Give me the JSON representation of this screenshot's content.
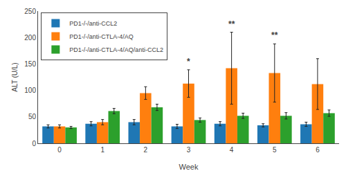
{
  "chart_data": {
    "type": "bar",
    "categories": [
      "0",
      "1",
      "2",
      "3",
      "4",
      "5",
      "6"
    ],
    "series": [
      {
        "name": "PD1-/-/anti-CCL2",
        "values": [
          32,
          37,
          40,
          32,
          37,
          34,
          36
        ],
        "errors": [
          3,
          4,
          5,
          4,
          4,
          3,
          4
        ]
      },
      {
        "name": "PD1-/-/anti-CTLA-4/AQ",
        "values": [
          32,
          40,
          95,
          113,
          142,
          133,
          112
        ],
        "errors": [
          3,
          5,
          12,
          26,
          68,
          55,
          48
        ]
      },
      {
        "name": "PD1-/-/anti-CTLA-4/AQ/anti-CCL2",
        "values": [
          30,
          61,
          68,
          44,
          52,
          52,
          57
        ],
        "errors": [
          2,
          5,
          6,
          4,
          5,
          6,
          6
        ]
      }
    ],
    "annotations": [
      {
        "category": "3",
        "y": 143,
        "text": "*"
      },
      {
        "category": "4",
        "y": 214,
        "text": "**"
      },
      {
        "category": "5",
        "y": 192,
        "text": "**"
      }
    ],
    "xlabel": "Week",
    "ylabel": "ALT (U/L)",
    "ylim": [
      0,
      250
    ],
    "yticks": [
      0,
      50,
      100,
      150,
      200,
      250
    ],
    "grid": false,
    "legend": "upper left"
  }
}
